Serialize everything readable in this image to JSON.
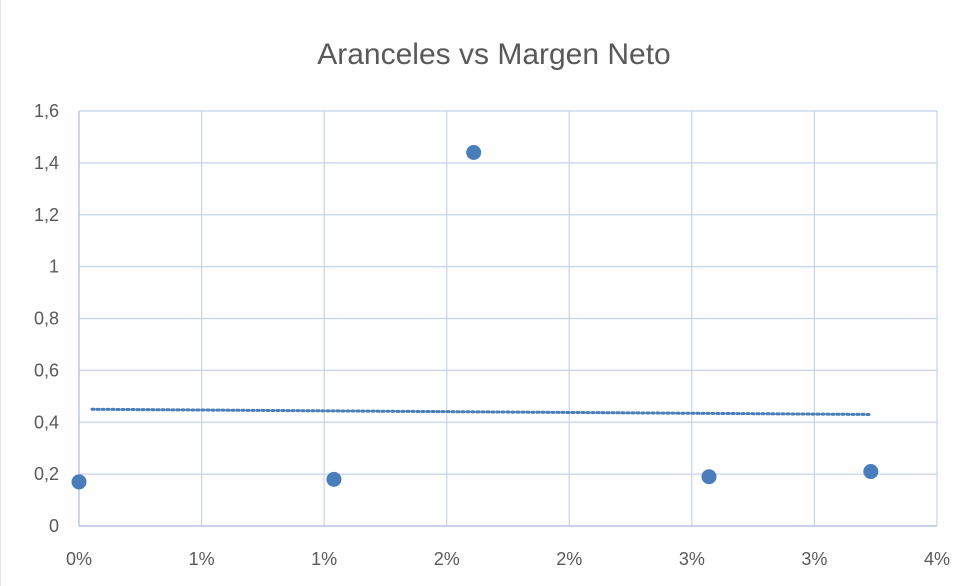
{
  "chart_data": {
    "type": "scatter",
    "title": "Aranceles vs Margen Neto",
    "xlabel": "",
    "ylabel": "",
    "xlim": [
      0,
      0.035
    ],
    "ylim": [
      0,
      1.6
    ],
    "x_tick_values": [
      0,
      0.005,
      0.01,
      0.015,
      0.02,
      0.025,
      0.03,
      0.035
    ],
    "x_tick_labels": [
      "0%",
      "1%",
      "1%",
      "2%",
      "2%",
      "3%",
      "3%",
      "4%"
    ],
    "y_tick_values": [
      0,
      0.2,
      0.4,
      0.6,
      0.8,
      1,
      1.2,
      1.4,
      1.6
    ],
    "y_tick_labels": [
      "0",
      "0,2",
      "0,4",
      "0,6",
      "0,8",
      "1",
      "1,2",
      "1,4",
      "1,6"
    ],
    "grid": true,
    "series": [
      {
        "color": "#4a7ebb",
        "points": [
          {
            "x": 0.0,
            "y": 0.17
          },
          {
            "x": 0.0104,
            "y": 0.18
          },
          {
            "x": 0.0161,
            "y": 1.44
          },
          {
            "x": 0.0257,
            "y": 0.19
          },
          {
            "x": 0.0323,
            "y": 0.21
          }
        ]
      }
    ],
    "trendline": {
      "style": "dotted",
      "color": "#4a7ebb",
      "x": [
        0.0,
        0.0323
      ],
      "y": [
        0.45,
        0.43
      ]
    },
    "legend": "none"
  }
}
